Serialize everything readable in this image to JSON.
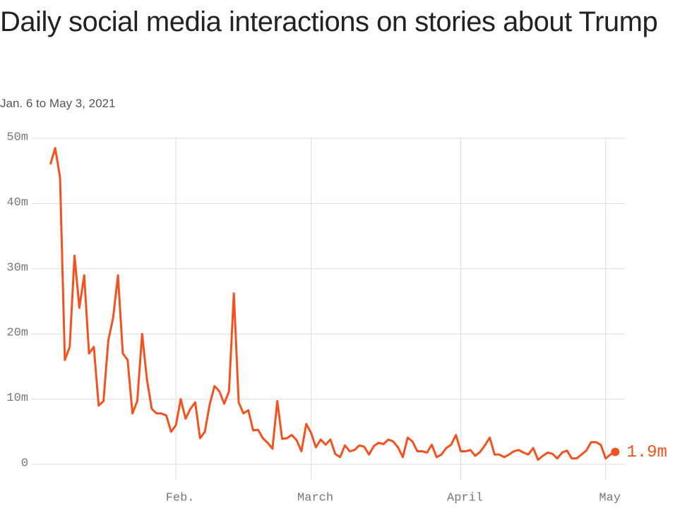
{
  "chart_data": {
    "type": "line",
    "title": "Daily social media interactions on stories about Trump",
    "subtitle": "Jan. 6 to May 3, 2021",
    "color": "#f4511e",
    "grid": true,
    "x": [
      "2021-01-06",
      "2021-01-07",
      "2021-01-08",
      "2021-01-09",
      "2021-01-10",
      "2021-01-11",
      "2021-01-12",
      "2021-01-13",
      "2021-01-14",
      "2021-01-15",
      "2021-01-16",
      "2021-01-17",
      "2021-01-18",
      "2021-01-19",
      "2021-01-20",
      "2021-01-21",
      "2021-01-22",
      "2021-01-23",
      "2021-01-24",
      "2021-01-25",
      "2021-01-26",
      "2021-01-27",
      "2021-01-28",
      "2021-01-29",
      "2021-01-30",
      "2021-01-31",
      "2021-02-01",
      "2021-02-02",
      "2021-02-03",
      "2021-02-04",
      "2021-02-05",
      "2021-02-06",
      "2021-02-07",
      "2021-02-08",
      "2021-02-09",
      "2021-02-10",
      "2021-02-11",
      "2021-02-12",
      "2021-02-13",
      "2021-02-14",
      "2021-02-15",
      "2021-02-16",
      "2021-02-17",
      "2021-02-18",
      "2021-02-19",
      "2021-02-20",
      "2021-02-21",
      "2021-02-22",
      "2021-02-23",
      "2021-02-24",
      "2021-02-25",
      "2021-02-26",
      "2021-02-27",
      "2021-02-28",
      "2021-03-01",
      "2021-03-02",
      "2021-03-03",
      "2021-03-04",
      "2021-03-05",
      "2021-03-06",
      "2021-03-07",
      "2021-03-08",
      "2021-03-09",
      "2021-03-10",
      "2021-03-11",
      "2021-03-12",
      "2021-03-13",
      "2021-03-14",
      "2021-03-15",
      "2021-03-16",
      "2021-03-17",
      "2021-03-18",
      "2021-03-19",
      "2021-03-20",
      "2021-03-21",
      "2021-03-22",
      "2021-03-23",
      "2021-03-24",
      "2021-03-25",
      "2021-03-26",
      "2021-03-27",
      "2021-03-28",
      "2021-03-29",
      "2021-03-30",
      "2021-03-31",
      "2021-04-01",
      "2021-04-02",
      "2021-04-03",
      "2021-04-04",
      "2021-04-05",
      "2021-04-06",
      "2021-04-07",
      "2021-04-08",
      "2021-04-09",
      "2021-04-10",
      "2021-04-11",
      "2021-04-12",
      "2021-04-13",
      "2021-04-14",
      "2021-04-15",
      "2021-04-16",
      "2021-04-17",
      "2021-04-18",
      "2021-04-19",
      "2021-04-20",
      "2021-04-21",
      "2021-04-22",
      "2021-04-23",
      "2021-04-24",
      "2021-04-25",
      "2021-04-26",
      "2021-04-27",
      "2021-04-28",
      "2021-04-29",
      "2021-04-30",
      "2021-05-01",
      "2021-05-02",
      "2021-05-03"
    ],
    "values": [
      46,
      48.5,
      44,
      16,
      18,
      32,
      24,
      29,
      17,
      18,
      9,
      9.7,
      19,
      22.5,
      29,
      17,
      16,
      7.8,
      9.7,
      20,
      13,
      8.5,
      7.8,
      7.8,
      7.5,
      5,
      6,
      10,
      7,
      8.5,
      9.5,
      4,
      5,
      9.2,
      12,
      11.2,
      9.3,
      11.2,
      26.2,
      9.5,
      7.8,
      8.3,
      5.2,
      5.3,
      4,
      3.3,
      2.4,
      9.7,
      3.9,
      4,
      4.5,
      3.7,
      2,
      6.2,
      4.8,
      2.6,
      3.8,
      3,
      3.8,
      1.6,
      1.1,
      2.9,
      2,
      2.2,
      2.9,
      2.7,
      1.5,
      2.8,
      3.3,
      3.1,
      3.8,
      3.5,
      2.6,
      1.1,
      4.1,
      3.5,
      2,
      2,
      1.8,
      3,
      1.1,
      1.5,
      2.5,
      3,
      4.5,
      2,
      2,
      2.2,
      1.3,
      1.9,
      2.9,
      4.1,
      1.5,
      1.5,
      1.1,
      1.5,
      2,
      2.2,
      1.8,
      1.5,
      2.5,
      0.7,
      1.3,
      1.8,
      1.6,
      0.9,
      1.8,
      2.1,
      0.9,
      0.9,
      1.5,
      2.1,
      3.4,
      3.4,
      3,
      0.9,
      1.5,
      1.9
    ],
    "value_labels": [
      null,
      null,
      null,
      null,
      null,
      null,
      null,
      null,
      null,
      null,
      null,
      null,
      null,
      null,
      null,
      null,
      null,
      null,
      null,
      null,
      null,
      null,
      null,
      null,
      null,
      null,
      null,
      null,
      null,
      null,
      null,
      null,
      null,
      null,
      null,
      null,
      null,
      null,
      null,
      null,
      null,
      null,
      null,
      null,
      null,
      null,
      null,
      null,
      null,
      null,
      null,
      null,
      null,
      null,
      null,
      null,
      null,
      null,
      null,
      null,
      null,
      null,
      null,
      null,
      null,
      null,
      null,
      null,
      null,
      null,
      null,
      null,
      null,
      null,
      null,
      null,
      null,
      null,
      null,
      null,
      null,
      null,
      null,
      null,
      null,
      null,
      null,
      null,
      null,
      null,
      null,
      null,
      null,
      null,
      null,
      null,
      null,
      null,
      null,
      null,
      null,
      null,
      null,
      null,
      null,
      null,
      null,
      null,
      null,
      null,
      null,
      null,
      null,
      null,
      null,
      null,
      null,
      "1.9m"
    ],
    "xlim": [
      "2021-01-02",
      "2021-05-05"
    ],
    "xticks": [
      {
        "value": "2021-02-01",
        "label": "Feb."
      },
      {
        "value": "2021-03-01",
        "label": "March"
      },
      {
        "value": "2021-04-01",
        "label": "April"
      },
      {
        "value": "2021-05-01",
        "label": "May"
      }
    ],
    "ylim": [
      0,
      50
    ],
    "yticks": [
      0,
      {
        "value": 10,
        "label": "10m"
      },
      {
        "value": 20,
        "label": "20m"
      },
      {
        "value": 30,
        "label": "30m"
      },
      {
        "value": 40,
        "label": "40m"
      },
      {
        "value": 50,
        "label": "50m"
      }
    ]
  }
}
